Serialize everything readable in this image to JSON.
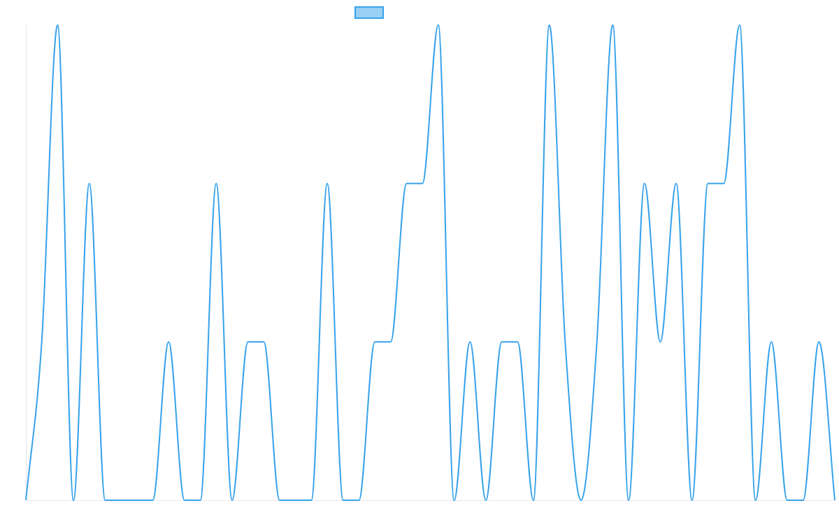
{
  "chart_data": {
    "type": "line",
    "title": "",
    "xlabel": "",
    "ylabel": "",
    "legend": {
      "position": "top-center",
      "label": ""
    },
    "grid": false,
    "ylim": [
      0,
      3
    ],
    "series": [
      {
        "color": "#36a2eb",
        "fill": "#9ad0f5",
        "values": [
          0,
          1,
          3,
          0,
          2,
          0,
          0,
          0,
          0,
          1,
          0,
          0,
          2,
          0,
          1,
          1,
          0,
          0,
          0,
          2,
          0,
          0,
          1,
          1,
          2,
          2,
          3,
          0,
          1,
          0,
          1,
          1,
          0,
          3,
          1,
          0,
          1,
          3,
          0,
          2,
          1,
          2,
          0,
          2,
          2,
          3,
          0,
          1,
          0,
          0,
          1,
          0
        ]
      }
    ]
  }
}
